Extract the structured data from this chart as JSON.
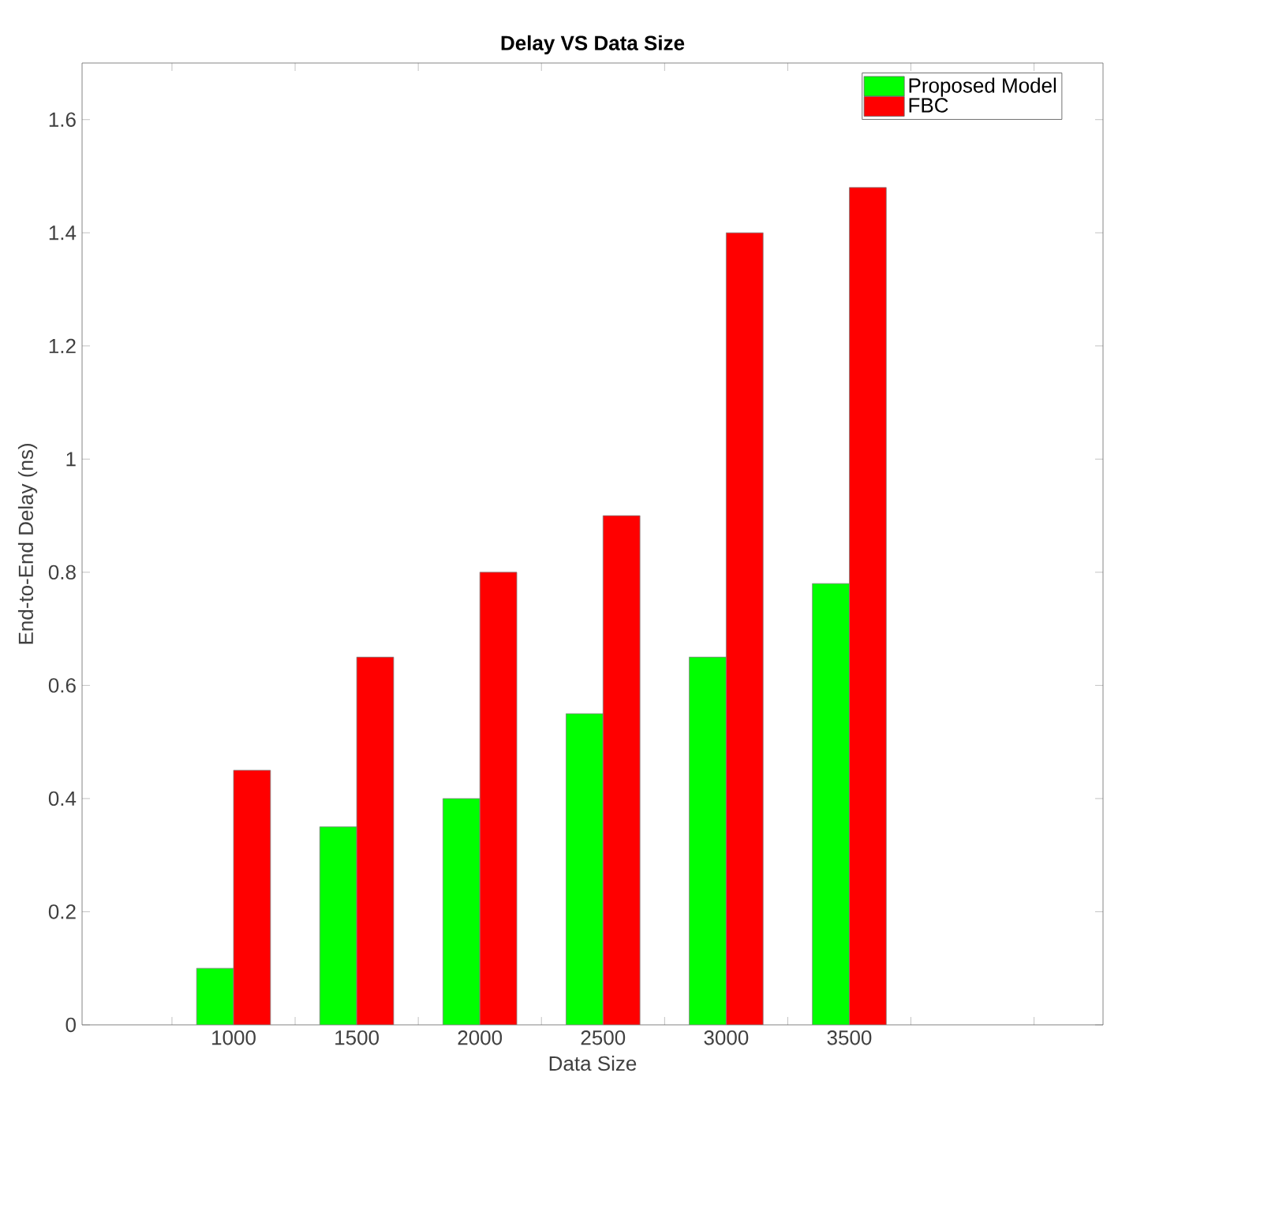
{
  "chart_data": {
    "type": "bar",
    "title": "Delay VS Data Size",
    "xlabel": "Data Size",
    "ylabel": "End-to-End Delay (ns)",
    "categories": [
      "1000",
      "1500",
      "2000",
      "2500",
      "3000",
      "3500"
    ],
    "series": [
      {
        "name": "Proposed Model",
        "color": "#00ff00",
        "values": [
          0.1,
          0.35,
          0.4,
          0.55,
          0.65,
          0.78
        ]
      },
      {
        "name": "FBC",
        "color": "#ff0000",
        "values": [
          0.45,
          0.65,
          0.8,
          0.9,
          1.4,
          1.48
        ]
      }
    ],
    "ylim": [
      0,
      1.7
    ],
    "yticks": [
      0,
      0.2,
      0.4,
      0.6,
      0.8,
      1,
      1.2,
      1.4,
      1.6
    ],
    "legend": "top right",
    "grid": false
  }
}
